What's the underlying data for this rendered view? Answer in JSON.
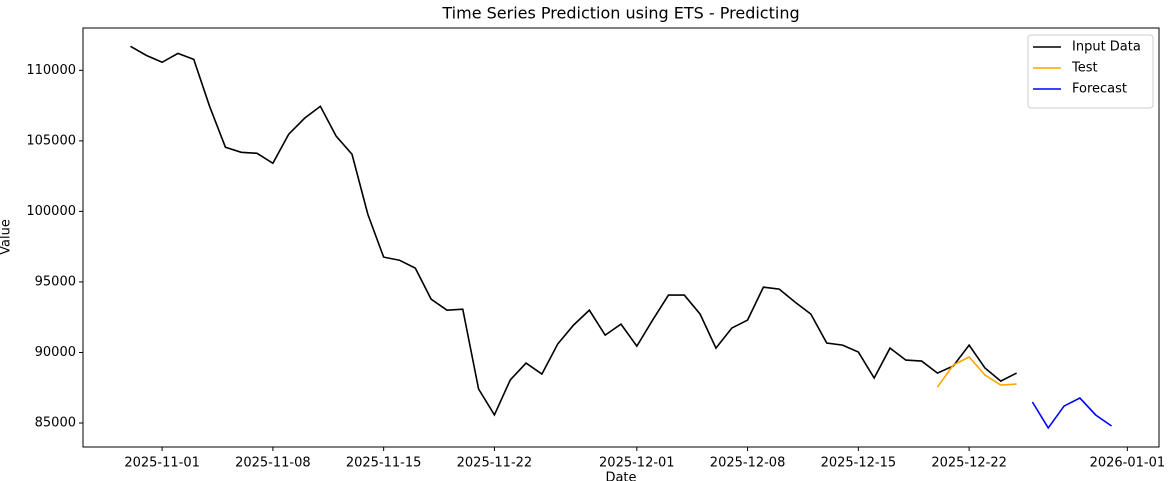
{
  "chart_data": {
    "type": "line",
    "title": "Time Series Prediction using ETS - Predicting",
    "xlabel": "Date",
    "ylabel": "Value",
    "series": [
      {
        "name": "Input Data",
        "color": "#000000",
        "x": [
          "2025-10-30",
          "2025-10-31",
          "2025-11-01",
          "2025-11-02",
          "2025-11-03",
          "2025-11-04",
          "2025-11-05",
          "2025-11-06",
          "2025-11-07",
          "2025-11-08",
          "2025-11-09",
          "2025-11-10",
          "2025-11-11",
          "2025-11-12",
          "2025-11-13",
          "2025-11-14",
          "2025-11-15",
          "2025-11-16",
          "2025-11-17",
          "2025-11-18",
          "2025-11-19",
          "2025-11-20",
          "2025-11-21",
          "2025-11-22",
          "2025-11-23",
          "2025-11-24",
          "2025-11-25",
          "2025-11-26",
          "2025-11-27",
          "2025-11-28",
          "2025-11-29",
          "2025-11-30",
          "2025-12-01",
          "2025-12-02",
          "2025-12-03",
          "2025-12-04",
          "2025-12-05",
          "2025-12-06",
          "2025-12-07",
          "2025-12-08",
          "2025-12-09",
          "2025-12-10",
          "2025-12-11",
          "2025-12-12",
          "2025-12-13",
          "2025-12-14",
          "2025-12-15",
          "2025-12-16",
          "2025-12-17",
          "2025-12-18",
          "2025-12-19",
          "2025-12-20",
          "2025-12-21",
          "2025-12-22",
          "2025-12-23",
          "2025-12-24",
          "2025-12-25"
        ],
        "values": [
          111700,
          111060,
          110570,
          111200,
          110780,
          107450,
          104550,
          104190,
          104120,
          103410,
          105470,
          106600,
          107450,
          105330,
          104050,
          99800,
          96760,
          96540,
          95980,
          93780,
          93000,
          93070,
          87410,
          85570,
          88050,
          89250,
          88470,
          90600,
          91940,
          93000,
          91230,
          92010,
          90450,
          92300,
          94070,
          94070,
          92720,
          90310,
          91730,
          92300,
          94630,
          94490,
          93570,
          92720,
          90670,
          90520,
          90030,
          88190,
          90310,
          89460,
          89390,
          88540,
          89040,
          90520,
          88900,
          87970,
          88540
        ]
      },
      {
        "name": "Test",
        "color": "#ffa500",
        "x": [
          "2025-12-20",
          "2025-12-21",
          "2025-12-22",
          "2025-12-23",
          "2025-12-24",
          "2025-12-25"
        ],
        "values": [
          87550,
          89110,
          89680,
          88400,
          87690,
          87760
        ]
      },
      {
        "name": "Forecast",
        "color": "#0000ff",
        "x": [
          "2025-12-26",
          "2025-12-27",
          "2025-12-28",
          "2025-12-29",
          "2025-12-30",
          "2025-12-31"
        ],
        "values": [
          86490,
          84650,
          86200,
          86770,
          85570,
          84790
        ]
      }
    ],
    "xlim": [
      "2025-10-27",
      "2026-01-03"
    ],
    "xticks": [
      "2025-11-01",
      "2025-11-08",
      "2025-11-15",
      "2025-11-22",
      "2025-12-01",
      "2025-12-08",
      "2025-12-15",
      "2025-12-22",
      "2026-01-01"
    ],
    "ylim": [
      83300,
      113000
    ],
    "yticks": [
      85000,
      90000,
      95000,
      100000,
      105000,
      110000
    ],
    "legend": "upper right",
    "grid": false
  }
}
